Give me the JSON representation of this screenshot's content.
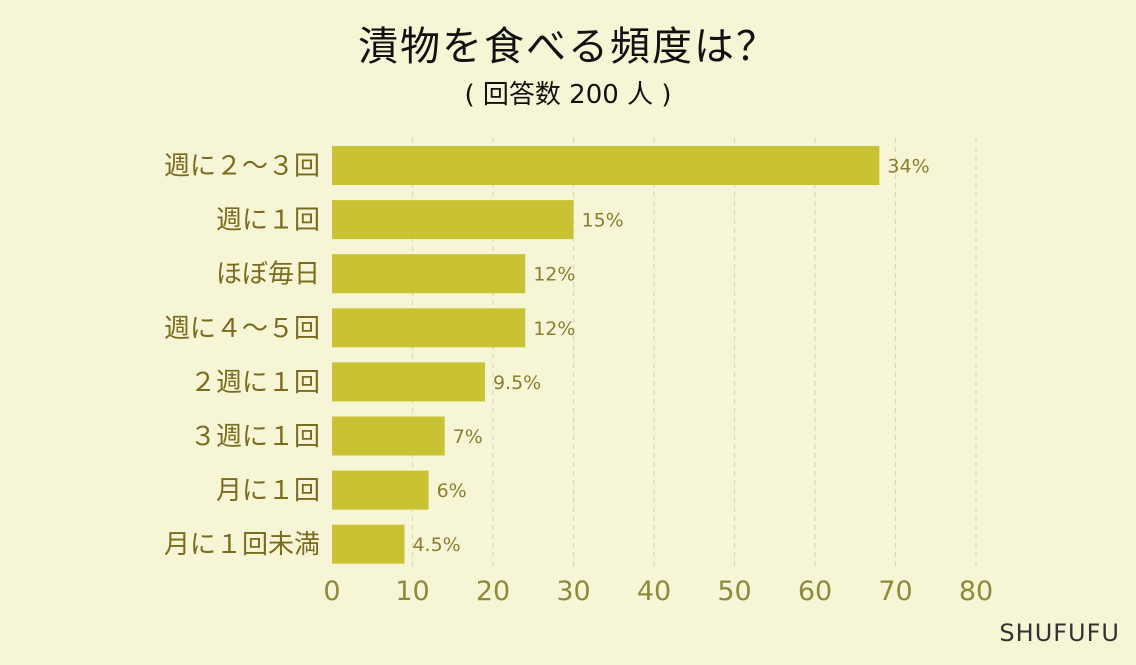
{
  "title": "漬物を食べる頻度は？",
  "subtitle": "( 回答数 200 人 )",
  "brand": "SHUFUFU",
  "colors": {
    "bar": "#c9c233",
    "background": "#f6f6d6",
    "grid": "#d8d6c0"
  },
  "chart_data": {
    "type": "bar",
    "orientation": "horizontal",
    "title": "漬物を食べる頻度は？",
    "subtitle": "( 回答数 200 人 )",
    "categories": [
      "週に２～３回",
      "週に１回",
      "ほぼ毎日",
      "週に４～５回",
      "２週に１回",
      "３週に１回",
      "月に１回",
      "月に１回未満"
    ],
    "values": [
      68,
      30,
      24,
      24,
      19,
      14,
      12,
      9
    ],
    "value_labels": [
      "34%",
      "15%",
      "12%",
      "12%",
      "9.5%",
      "7%",
      "6%",
      "4.5%"
    ],
    "xlim": [
      0,
      80
    ],
    "xticks": [
      "0",
      "10",
      "20",
      "30",
      "40",
      "50",
      "60",
      "70",
      "80"
    ],
    "grid": "vertical-dashed",
    "xlabel": "",
    "ylabel": ""
  }
}
